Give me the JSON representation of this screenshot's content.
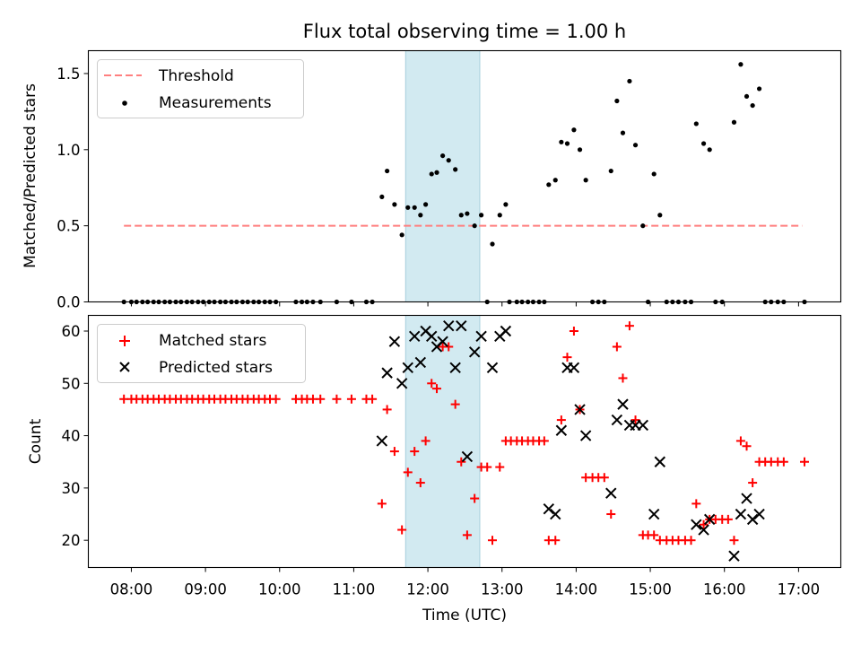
{
  "chart_data": [
    {
      "type": "scatter",
      "title": "Flux total observing time = 1.00 h",
      "xlabel": "",
      "ylabel": "Matched/Predicted stars",
      "xlim": [
        7.42,
        17.57
      ],
      "ylim": [
        0,
        1.65
      ],
      "yticks": [
        0.0,
        0.5,
        1.0,
        1.5
      ],
      "ytick_labels": [
        "0.0",
        "0.5",
        "1.0",
        "1.5"
      ],
      "highlight_span": {
        "from": 11.7,
        "to": 12.7,
        "color": "#add8e6"
      },
      "legend": {
        "placement": "upper-left",
        "entries": [
          "Threshold",
          "Measurements"
        ]
      },
      "series": [
        {
          "name": "Threshold",
          "style": "dashed-line",
          "color": "#ff7f7f",
          "x": [
            7.9,
            17.05
          ],
          "y": [
            0.5,
            0.5
          ]
        },
        {
          "name": "Measurements",
          "style": "dot",
          "color": "#000000",
          "points": [
            [
              7.9,
              0
            ],
            [
              8.0,
              0
            ],
            [
              8.07,
              0
            ],
            [
              8.15,
              0
            ],
            [
              8.22,
              0
            ],
            [
              8.3,
              0
            ],
            [
              8.37,
              0
            ],
            [
              8.45,
              0
            ],
            [
              8.52,
              0
            ],
            [
              8.6,
              0
            ],
            [
              8.67,
              0
            ],
            [
              8.75,
              0
            ],
            [
              8.82,
              0
            ],
            [
              8.9,
              0
            ],
            [
              8.97,
              0
            ],
            [
              9.05,
              0
            ],
            [
              9.12,
              0
            ],
            [
              9.2,
              0
            ],
            [
              9.27,
              0
            ],
            [
              9.35,
              0
            ],
            [
              9.42,
              0
            ],
            [
              9.5,
              0
            ],
            [
              9.57,
              0
            ],
            [
              9.65,
              0
            ],
            [
              9.72,
              0
            ],
            [
              9.8,
              0
            ],
            [
              9.87,
              0
            ],
            [
              9.95,
              0
            ],
            [
              10.22,
              0
            ],
            [
              10.3,
              0
            ],
            [
              10.37,
              0
            ],
            [
              10.45,
              0
            ],
            [
              10.55,
              0
            ],
            [
              10.77,
              0
            ],
            [
              10.97,
              0
            ],
            [
              11.17,
              0
            ],
            [
              11.25,
              0
            ],
            [
              11.38,
              0.69
            ],
            [
              11.45,
              0.86
            ],
            [
              11.55,
              0.64
            ],
            [
              11.65,
              0.44
            ],
            [
              11.73,
              0.62
            ],
            [
              11.82,
              0.62
            ],
            [
              11.9,
              0.57
            ],
            [
              11.97,
              0.64
            ],
            [
              12.05,
              0.84
            ],
            [
              12.12,
              0.85
            ],
            [
              12.2,
              0.96
            ],
            [
              12.28,
              0.93
            ],
            [
              12.37,
              0.87
            ],
            [
              12.45,
              0.57
            ],
            [
              12.53,
              0.58
            ],
            [
              12.63,
              0.5
            ],
            [
              12.72,
              0.57
            ],
            [
              12.8,
              0
            ],
            [
              12.87,
              0.38
            ],
            [
              12.97,
              0.57
            ],
            [
              13.05,
              0.64
            ],
            [
              13.1,
              0
            ],
            [
              13.2,
              0
            ],
            [
              13.27,
              0
            ],
            [
              13.35,
              0
            ],
            [
              13.42,
              0
            ],
            [
              13.5,
              0
            ],
            [
              13.57,
              0
            ],
            [
              13.63,
              0.77
            ],
            [
              13.72,
              0.8
            ],
            [
              13.8,
              1.05
            ],
            [
              13.88,
              1.04
            ],
            [
              13.97,
              1.13
            ],
            [
              14.05,
              1.0
            ],
            [
              14.13,
              0.8
            ],
            [
              14.22,
              0
            ],
            [
              14.3,
              0
            ],
            [
              14.38,
              0
            ],
            [
              14.47,
              0.86
            ],
            [
              14.55,
              1.32
            ],
            [
              14.63,
              1.11
            ],
            [
              14.72,
              1.45
            ],
            [
              14.8,
              1.03
            ],
            [
              14.9,
              0.5
            ],
            [
              14.97,
              0
            ],
            [
              15.05,
              0.84
            ],
            [
              15.13,
              0.57
            ],
            [
              15.22,
              0
            ],
            [
              15.3,
              0
            ],
            [
              15.38,
              0
            ],
            [
              15.47,
              0
            ],
            [
              15.55,
              0
            ],
            [
              15.62,
              1.17
            ],
            [
              15.72,
              1.04
            ],
            [
              15.8,
              1.0
            ],
            [
              15.88,
              0
            ],
            [
              15.97,
              0
            ],
            [
              16.13,
              1.18
            ],
            [
              16.22,
              1.56
            ],
            [
              16.3,
              1.35
            ],
            [
              16.38,
              1.29
            ],
            [
              16.47,
              1.4
            ],
            [
              16.55,
              0
            ],
            [
              16.63,
              0
            ],
            [
              16.72,
              0
            ],
            [
              16.8,
              0
            ],
            [
              17.08,
              0
            ]
          ]
        }
      ]
    },
    {
      "type": "scatter",
      "title": "",
      "xlabel": "Time (UTC)",
      "ylabel": "Count",
      "xlim": [
        7.42,
        17.57
      ],
      "ylim": [
        14.8,
        63.0
      ],
      "xticks": [
        8,
        9,
        10,
        11,
        12,
        13,
        14,
        15,
        16,
        17
      ],
      "xtick_labels": [
        "08:00",
        "09:00",
        "10:00",
        "11:00",
        "12:00",
        "13:00",
        "14:00",
        "15:00",
        "16:00",
        "17:00"
      ],
      "yticks": [
        20,
        30,
        40,
        50,
        60
      ],
      "ytick_labels": [
        "20",
        "30",
        "40",
        "50",
        "60"
      ],
      "highlight_span": {
        "from": 11.7,
        "to": 12.7,
        "color": "#add8e6"
      },
      "legend": {
        "placement": "upper-left",
        "entries": [
          "Matched stars",
          "Predicted stars"
        ]
      },
      "series": [
        {
          "name": "Matched stars",
          "marker": "plus",
          "color": "#ff0000",
          "points": [
            [
              7.9,
              47
            ],
            [
              8.0,
              47
            ],
            [
              8.07,
              47
            ],
            [
              8.15,
              47
            ],
            [
              8.22,
              47
            ],
            [
              8.3,
              47
            ],
            [
              8.37,
              47
            ],
            [
              8.45,
              47
            ],
            [
              8.52,
              47
            ],
            [
              8.6,
              47
            ],
            [
              8.67,
              47
            ],
            [
              8.75,
              47
            ],
            [
              8.82,
              47
            ],
            [
              8.9,
              47
            ],
            [
              8.97,
              47
            ],
            [
              9.05,
              47
            ],
            [
              9.12,
              47
            ],
            [
              9.2,
              47
            ],
            [
              9.27,
              47
            ],
            [
              9.35,
              47
            ],
            [
              9.42,
              47
            ],
            [
              9.5,
              47
            ],
            [
              9.57,
              47
            ],
            [
              9.65,
              47
            ],
            [
              9.72,
              47
            ],
            [
              9.8,
              47
            ],
            [
              9.87,
              47
            ],
            [
              9.95,
              47
            ],
            [
              10.22,
              47
            ],
            [
              10.3,
              47
            ],
            [
              10.37,
              47
            ],
            [
              10.45,
              47
            ],
            [
              10.55,
              47
            ],
            [
              10.77,
              47
            ],
            [
              10.97,
              47
            ],
            [
              11.17,
              47
            ],
            [
              11.25,
              47
            ],
            [
              11.38,
              27
            ],
            [
              11.45,
              45
            ],
            [
              11.55,
              37
            ],
            [
              11.65,
              22
            ],
            [
              11.73,
              33
            ],
            [
              11.82,
              37
            ],
            [
              11.9,
              31
            ],
            [
              11.97,
              39
            ],
            [
              12.05,
              50
            ],
            [
              12.12,
              49
            ],
            [
              12.2,
              57
            ],
            [
              12.28,
              57
            ],
            [
              12.37,
              46
            ],
            [
              12.45,
              35
            ],
            [
              12.53,
              21
            ],
            [
              12.63,
              28
            ],
            [
              12.72,
              34
            ],
            [
              12.8,
              34
            ],
            [
              12.87,
              20
            ],
            [
              12.97,
              34
            ],
            [
              13.05,
              39
            ],
            [
              13.12,
              39
            ],
            [
              13.2,
              39
            ],
            [
              13.27,
              39
            ],
            [
              13.35,
              39
            ],
            [
              13.42,
              39
            ],
            [
              13.5,
              39
            ],
            [
              13.57,
              39
            ],
            [
              13.63,
              20
            ],
            [
              13.72,
              20
            ],
            [
              13.8,
              43
            ],
            [
              13.88,
              55
            ],
            [
              13.97,
              60
            ],
            [
              14.05,
              45
            ],
            [
              14.13,
              32
            ],
            [
              14.22,
              32
            ],
            [
              14.3,
              32
            ],
            [
              14.38,
              32
            ],
            [
              14.47,
              25
            ],
            [
              14.55,
              57
            ],
            [
              14.63,
              51
            ],
            [
              14.72,
              61
            ],
            [
              14.8,
              43
            ],
            [
              14.9,
              21
            ],
            [
              14.97,
              21
            ],
            [
              15.05,
              21
            ],
            [
              15.13,
              20
            ],
            [
              15.22,
              20
            ],
            [
              15.3,
              20
            ],
            [
              15.38,
              20
            ],
            [
              15.47,
              20
            ],
            [
              15.55,
              20
            ],
            [
              15.62,
              27
            ],
            [
              15.72,
              23
            ],
            [
              15.8,
              24
            ],
            [
              15.88,
              24
            ],
            [
              15.97,
              24
            ],
            [
              16.05,
              24
            ],
            [
              16.13,
              20
            ],
            [
              16.22,
              39
            ],
            [
              16.3,
              38
            ],
            [
              16.38,
              31
            ],
            [
              16.47,
              35
            ],
            [
              16.55,
              35
            ],
            [
              16.63,
              35
            ],
            [
              16.72,
              35
            ],
            [
              16.8,
              35
            ],
            [
              17.08,
              35
            ]
          ]
        },
        {
          "name": "Predicted stars",
          "marker": "x",
          "color": "#000000",
          "points": [
            [
              11.38,
              39
            ],
            [
              11.45,
              52
            ],
            [
              11.55,
              58
            ],
            [
              11.65,
              50
            ],
            [
              11.73,
              53
            ],
            [
              11.82,
              59
            ],
            [
              11.9,
              54
            ],
            [
              11.97,
              60
            ],
            [
              12.05,
              59
            ],
            [
              12.12,
              57
            ],
            [
              12.2,
              58
            ],
            [
              12.28,
              61
            ],
            [
              12.37,
              53
            ],
            [
              12.45,
              61
            ],
            [
              12.53,
              36
            ],
            [
              12.63,
              56
            ],
            [
              12.72,
              59
            ],
            [
              12.87,
              53
            ],
            [
              12.97,
              59
            ],
            [
              13.05,
              60
            ],
            [
              13.63,
              26
            ],
            [
              13.72,
              25
            ],
            [
              13.8,
              41
            ],
            [
              13.88,
              53
            ],
            [
              13.97,
              53
            ],
            [
              14.05,
              45
            ],
            [
              14.13,
              40
            ],
            [
              14.47,
              29
            ],
            [
              14.55,
              43
            ],
            [
              14.63,
              46
            ],
            [
              14.72,
              42
            ],
            [
              14.8,
              42
            ],
            [
              14.9,
              42
            ],
            [
              15.05,
              25
            ],
            [
              15.13,
              35
            ],
            [
              15.62,
              23
            ],
            [
              15.72,
              22
            ],
            [
              15.8,
              24
            ],
            [
              16.13,
              17
            ],
            [
              16.22,
              25
            ],
            [
              16.3,
              28
            ],
            [
              16.38,
              24
            ],
            [
              16.47,
              25
            ]
          ]
        }
      ]
    }
  ]
}
